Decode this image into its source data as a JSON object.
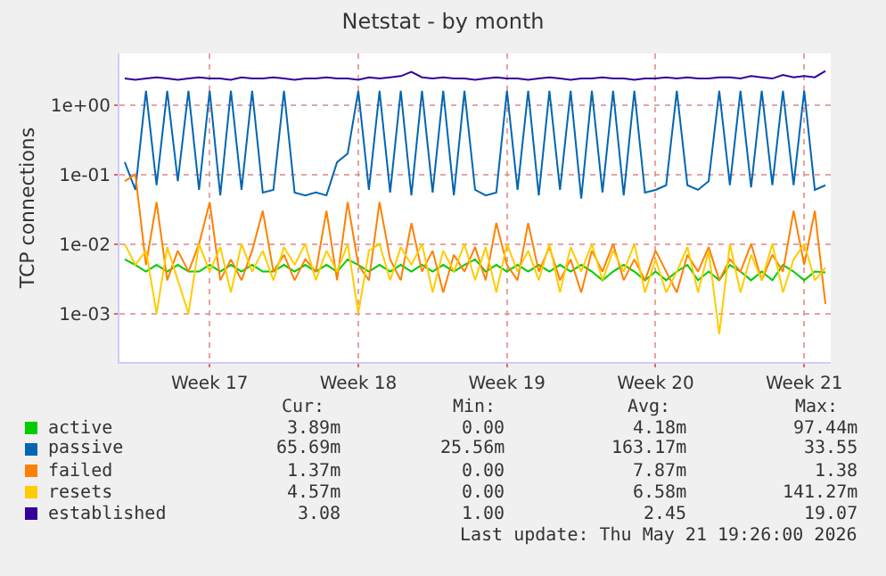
{
  "chart_data": {
    "type": "line",
    "title": "Netstat - by month",
    "ylabel": "TCP connections",
    "categories": [
      null,
      null,
      null,
      null,
      null,
      null,
      null,
      null,
      "Week 17",
      null,
      null,
      null,
      null,
      null,
      null,
      null,
      null,
      null,
      null,
      null,
      null,
      null,
      "Week 18",
      null,
      null,
      null,
      null,
      null,
      null,
      null,
      null,
      null,
      null,
      null,
      null,
      null,
      "Week 19",
      null,
      null,
      null,
      null,
      null,
      null,
      null,
      null,
      null,
      null,
      null,
      null,
      null,
      "Week 20",
      null,
      null,
      null,
      null,
      null,
      null,
      null,
      null,
      null,
      null,
      null,
      null,
      null,
      "Week 21",
      null,
      null
    ],
    "series": [
      {
        "name": "active",
        "color": "#00cc00",
        "values": [
          0.006,
          0.005,
          0.004,
          0.005,
          0.004,
          0.005,
          0.004,
          0.004,
          0.005,
          0.004,
          0.005,
          0.004,
          0.005,
          0.004,
          0.004,
          0.005,
          0.004,
          0.005,
          0.004,
          0.005,
          0.004,
          0.006,
          0.005,
          0.004,
          0.005,
          0.004,
          0.005,
          0.004,
          0.005,
          0.004,
          0.005,
          0.004,
          0.005,
          0.006,
          0.004,
          0.005,
          0.004,
          0.005,
          0.004,
          0.005,
          0.004,
          0.005,
          0.004,
          0.005,
          0.004,
          0.003,
          0.004,
          0.005,
          0.004,
          0.003,
          0.004,
          0.003,
          0.004,
          0.005,
          0.003,
          0.004,
          0.003,
          0.005,
          0.004,
          0.003,
          0.004,
          0.003,
          0.005,
          0.004,
          0.003,
          0.004,
          0.0039
        ]
      },
      {
        "name": "passive",
        "color": "#0066b3",
        "values": [
          0.15,
          0.06,
          1.6,
          0.07,
          1.6,
          0.08,
          1.6,
          0.06,
          1.6,
          0.05,
          1.6,
          0.06,
          1.6,
          0.055,
          0.06,
          1.6,
          0.055,
          0.05,
          0.055,
          0.05,
          0.15,
          0.2,
          1.6,
          0.06,
          1.6,
          0.055,
          1.6,
          0.05,
          1.6,
          0.055,
          1.6,
          0.05,
          1.6,
          0.06,
          0.05,
          0.055,
          1.6,
          0.06,
          1.6,
          0.05,
          1.6,
          0.06,
          1.6,
          0.045,
          1.6,
          0.055,
          1.6,
          0.05,
          1.6,
          0.055,
          0.06,
          0.07,
          1.6,
          0.07,
          0.06,
          0.08,
          1.6,
          0.07,
          1.6,
          0.065,
          1.6,
          0.07,
          1.6,
          0.07,
          1.6,
          0.06,
          0.07
        ]
      },
      {
        "name": "failed",
        "color": "#ff8000",
        "values": [
          0.08,
          0.1,
          0.005,
          0.04,
          0.003,
          0.008,
          0.004,
          0.01,
          0.04,
          0.003,
          0.006,
          0.003,
          0.008,
          0.03,
          0.004,
          0.007,
          0.003,
          0.006,
          0.004,
          0.03,
          0.003,
          0.04,
          0.005,
          0.003,
          0.04,
          0.006,
          0.003,
          0.02,
          0.004,
          0.008,
          0.002,
          0.007,
          0.004,
          0.009,
          0.003,
          0.02,
          0.005,
          0.003,
          0.02,
          0.004,
          0.009,
          0.003,
          0.006,
          0.002,
          0.008,
          0.004,
          0.01,
          0.003,
          0.006,
          0.003,
          0.008,
          0.004,
          0.002,
          0.007,
          0.004,
          0.009,
          0.003,
          0.006,
          0.004,
          0.01,
          0.003,
          0.007,
          0.004,
          0.03,
          0.005,
          0.03,
          0.00137
        ]
      },
      {
        "name": "resets",
        "color": "#ffcc00",
        "values": [
          0.01,
          0.005,
          0.008,
          0.001,
          0.009,
          0.003,
          0.001,
          0.01,
          0.004,
          0.009,
          0.002,
          0.01,
          0.004,
          0.008,
          0.003,
          0.009,
          0.005,
          0.01,
          0.003,
          0.008,
          0.004,
          0.01,
          0.001,
          0.008,
          0.01,
          0.003,
          0.009,
          0.005,
          0.01,
          0.002,
          0.008,
          0.004,
          0.01,
          0.003,
          0.009,
          0.002,
          0.01,
          0.004,
          0.008,
          0.003,
          0.01,
          0.002,
          0.009,
          0.004,
          0.01,
          0.003,
          0.008,
          0.004,
          0.01,
          0.002,
          0.006,
          0.002,
          0.004,
          0.009,
          0.002,
          0.008,
          0.0005,
          0.01,
          0.002,
          0.007,
          0.003,
          0.01,
          0.002,
          0.006,
          0.01,
          0.003,
          0.00457
        ]
      },
      {
        "name": "established",
        "color": "#330099",
        "values": [
          2.4,
          2.3,
          2.4,
          2.5,
          2.4,
          2.3,
          2.4,
          2.5,
          2.4,
          2.4,
          2.3,
          2.5,
          2.4,
          2.4,
          2.5,
          2.4,
          2.3,
          2.4,
          2.4,
          2.5,
          2.4,
          2.4,
          2.3,
          2.5,
          2.4,
          2.5,
          2.6,
          3.0,
          2.5,
          2.4,
          2.5,
          2.4,
          2.4,
          2.3,
          2.4,
          2.5,
          2.4,
          2.4,
          2.3,
          2.4,
          2.5,
          2.4,
          2.3,
          2.4,
          2.4,
          2.5,
          2.4,
          2.4,
          2.3,
          2.4,
          2.4,
          2.5,
          2.4,
          2.5,
          2.4,
          2.4,
          2.5,
          2.5,
          2.4,
          2.6,
          2.5,
          2.4,
          2.7,
          2.5,
          2.6,
          2.5,
          3.08
        ]
      }
    ],
    "log": "y",
    "ylim": [
      0.0002,
      5.5
    ],
    "yticks": [
      {
        "value": 0.001,
        "label": "1e-03"
      },
      {
        "value": 0.01,
        "label": "1e-02"
      },
      {
        "value": 0.1,
        "label": "1e-01"
      },
      {
        "value": 1,
        "label": "1e+00"
      }
    ],
    "grid": true,
    "legend": "bottom left",
    "marker": "none",
    "line_style": "solid",
    "annotations": [
      "Cur:",
      "Min:",
      "Avg:",
      "Max:",
      "3.89m",
      "0.00",
      "4.18m",
      "97.44m",
      "65.69m",
      "25.56m",
      "163.17m",
      "33.55",
      "1.37m",
      "0.00",
      "7.87m",
      "1.38",
      "4.57m",
      "0.00",
      "6.58m",
      "141.27m",
      "3.08",
      "1.00",
      "2.45",
      "19.07",
      "Last update: Thu May 21 19:26:00 2026"
    ]
  }
}
